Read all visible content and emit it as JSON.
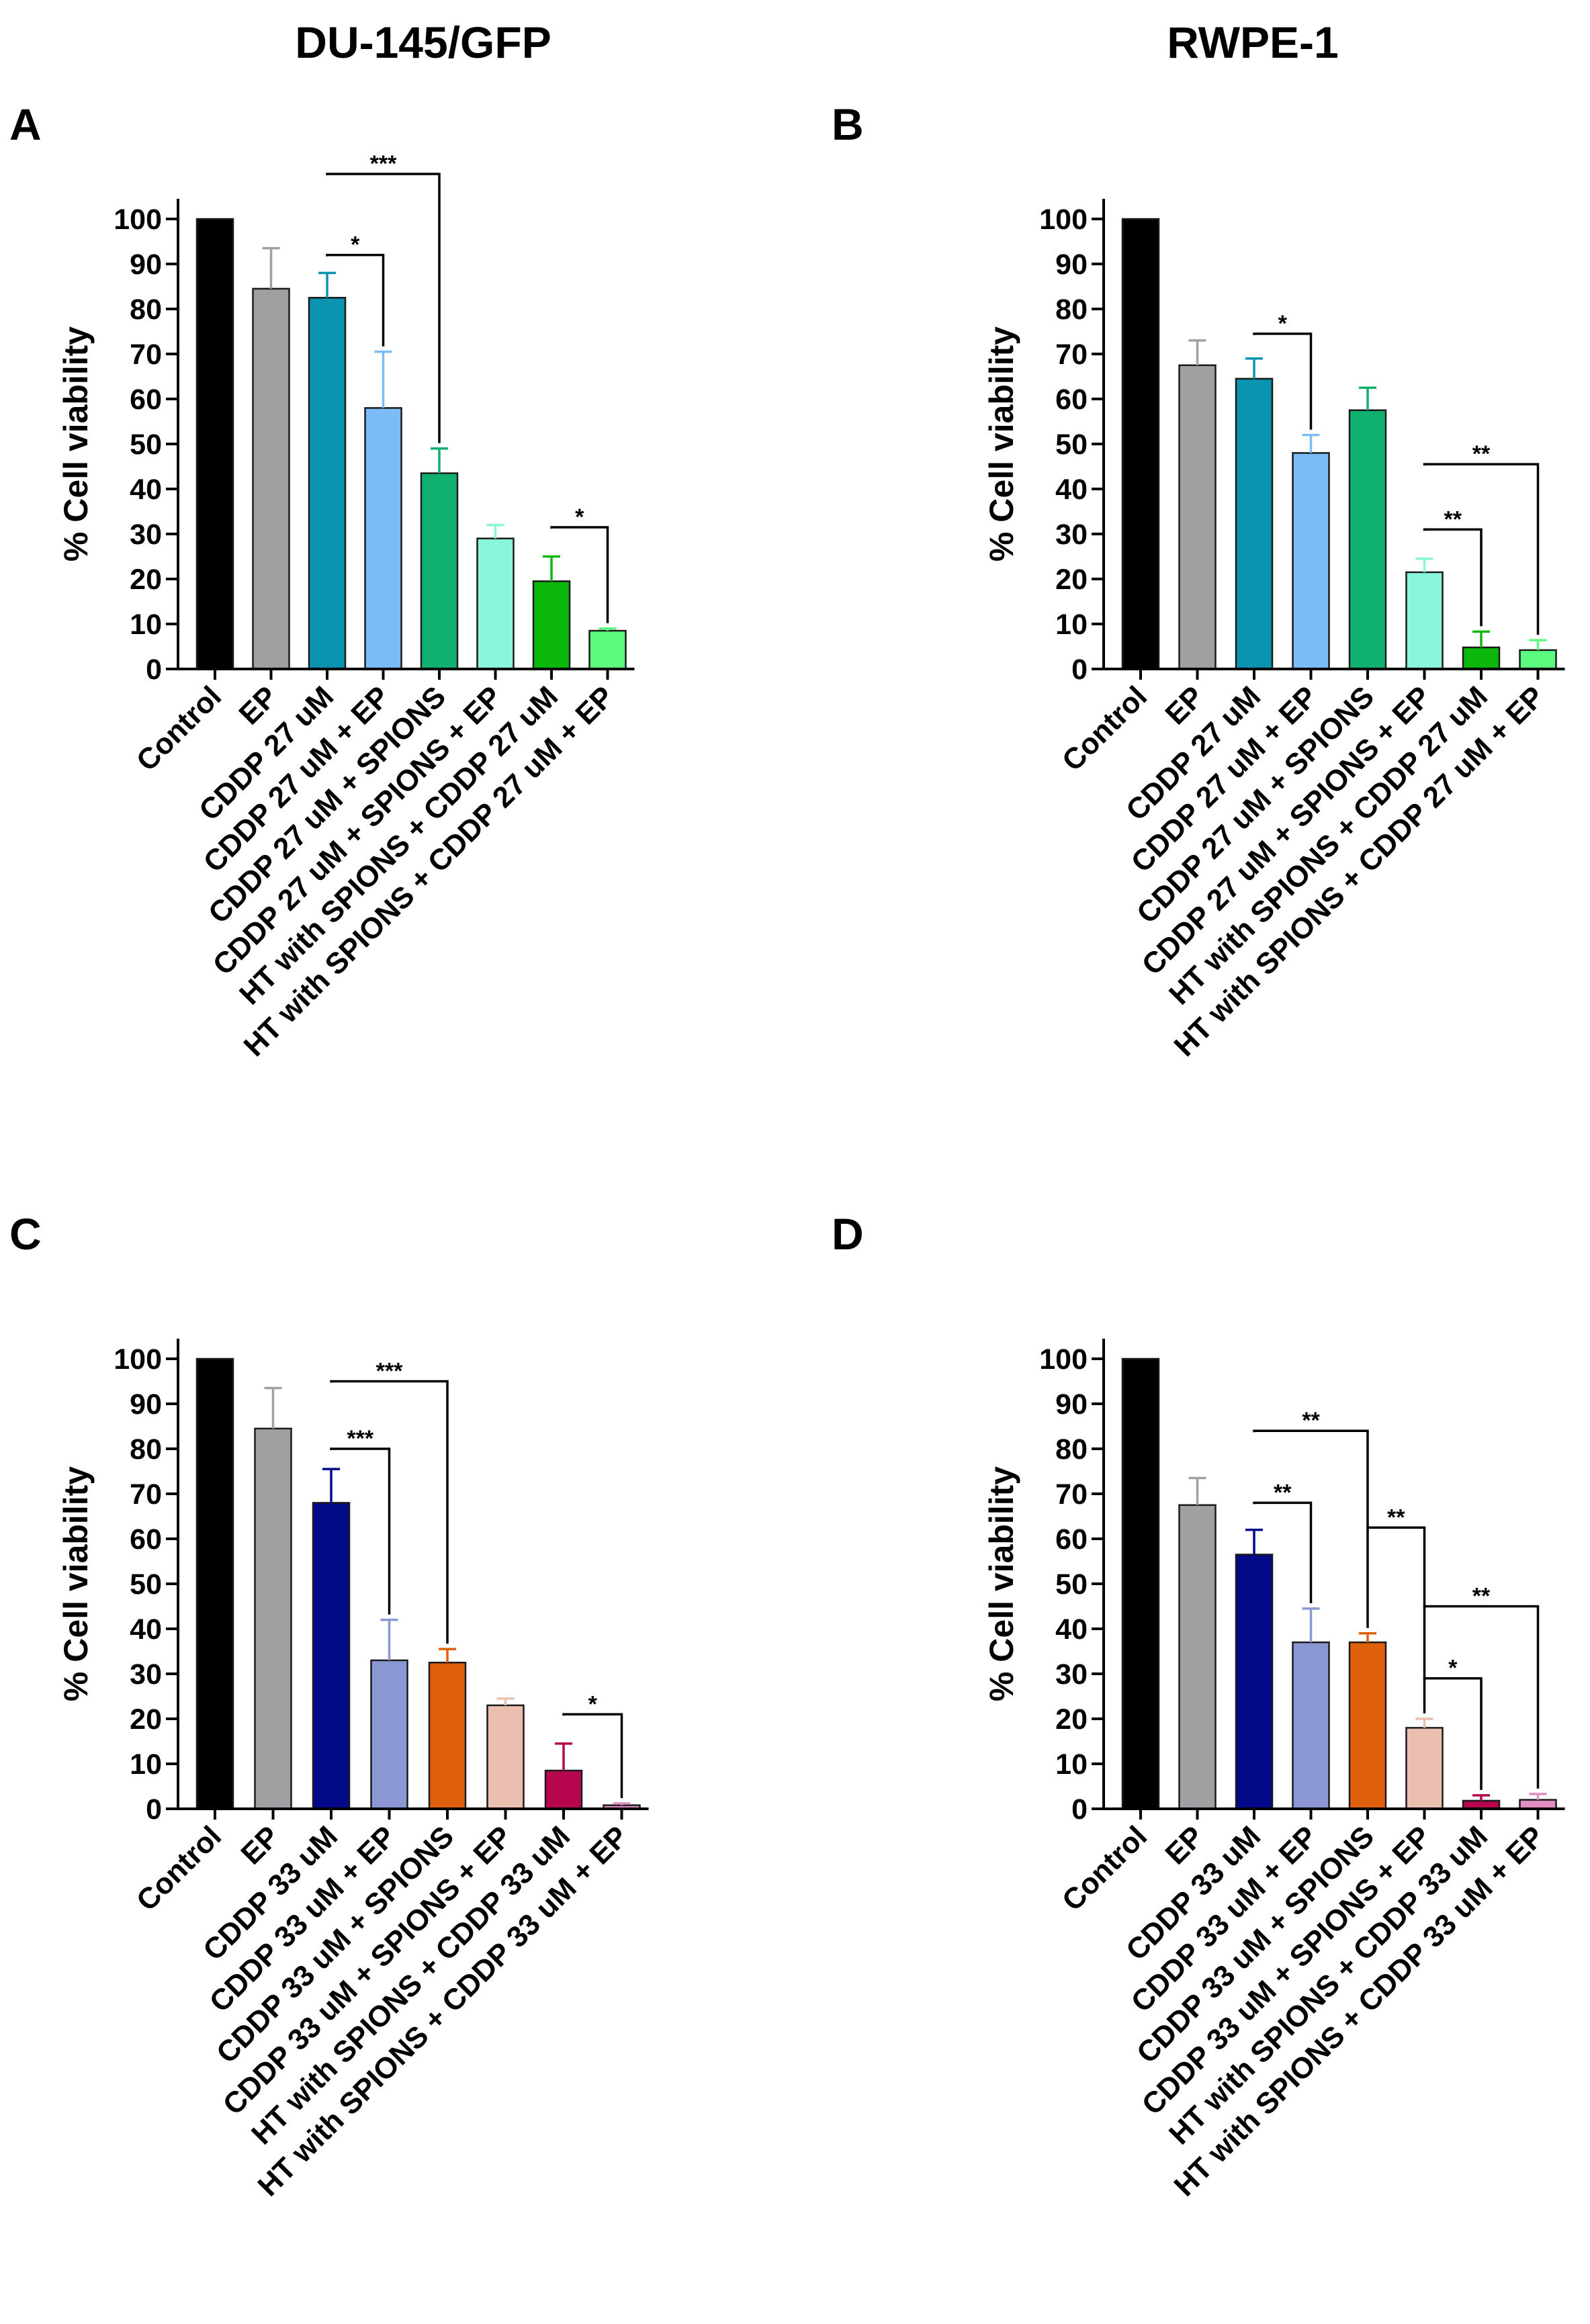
{
  "column_titles": [
    "DU-145/GFP",
    "RWPE-1"
  ],
  "chart_data": [
    {
      "type": "bar",
      "panel": "A",
      "ylabel": "% Cell viability",
      "ylim": [
        0,
        100
      ],
      "yticks": [
        0,
        10,
        20,
        30,
        40,
        50,
        60,
        70,
        80,
        90,
        100
      ],
      "categories": [
        "Control",
        "EP",
        "CDDP 27 uM",
        "CDDP 27 uM + EP",
        "CDDP 27 uM + SPIONS",
        "CDDP 27 uM + SPIONS + EP",
        "HT with SPIONS + CDDP 27 uM",
        "HT with SPIONS + CDDP 27 uM + EP"
      ],
      "values": [
        100,
        84.5,
        82.5,
        58,
        43.5,
        29,
        19.5,
        8.5
      ],
      "errors": [
        0,
        9,
        5.5,
        12.5,
        5.5,
        3,
        5.5,
        0.5
      ],
      "colors": [
        "#000000",
        "#a0a0a2",
        "#0b93b0",
        "#79bcf7",
        "#0fb070",
        "#8af6d9",
        "#0cb80c",
        "#5dfa80"
      ],
      "significance": [
        {
          "from": 2,
          "to": 4,
          "label": "***",
          "y": 110
        },
        {
          "from": 2,
          "to": 3,
          "label": "*",
          "y": 92
        },
        {
          "from": 6,
          "to": 7,
          "label": "*",
          "y": 31.5
        }
      ]
    },
    {
      "type": "bar",
      "panel": "B",
      "ylabel": "% Cell viability",
      "ylim": [
        0,
        100
      ],
      "yticks": [
        0,
        10,
        20,
        30,
        40,
        50,
        60,
        70,
        80,
        90,
        100
      ],
      "categories": [
        "Control",
        "EP",
        "CDDP 27 uM",
        "CDDP 27 uM + EP",
        "CDDP 27 uM + SPIONS",
        "CDDP 27 uM + SPIONS + EP",
        "HT with SPIONS + CDDP 27 uM",
        "HT with SPIONS + CDDP 27 uM + EP"
      ],
      "values": [
        100,
        67.5,
        64.5,
        48,
        57.5,
        21.5,
        4.8,
        4.2
      ],
      "errors": [
        0,
        5.5,
        4.5,
        4,
        5,
        3,
        3.5,
        2.2
      ],
      "colors": [
        "#000000",
        "#a0a0a2",
        "#0b93b0",
        "#79bcf7",
        "#0fb070",
        "#8af6d9",
        "#0cb80c",
        "#5dfa80"
      ],
      "significance": [
        {
          "from": 2,
          "to": 3,
          "label": "*",
          "y": 74.5
        },
        {
          "from": 5,
          "to": 7,
          "label": "**",
          "y": 45.5
        },
        {
          "from": 5,
          "to": 6,
          "label": "**",
          "y": 31
        }
      ]
    },
    {
      "type": "bar",
      "panel": "C",
      "ylabel": "% Cell viability",
      "ylim": [
        0,
        100
      ],
      "yticks": [
        0,
        10,
        20,
        30,
        40,
        50,
        60,
        70,
        80,
        90,
        100
      ],
      "categories": [
        "Control",
        "EP",
        "CDDP 33 uM",
        "CDDP 33 uM + EP",
        "CDDP 33 uM + SPIONS",
        "CDDP 33 uM + SPIONS + EP",
        "HT with SPIONS + CDDP 33 uM",
        "HT with SPIONS + CDDP 33 uM + EP"
      ],
      "values": [
        100,
        84.5,
        68,
        33,
        32.5,
        23,
        8.5,
        0.8
      ],
      "errors": [
        0,
        9,
        7.5,
        9,
        3,
        1.5,
        6,
        0.4
      ],
      "colors": [
        "#000000",
        "#a0a0a2",
        "#030a8a",
        "#8b97d2",
        "#e05f0a",
        "#ebbfb0",
        "#b5064e",
        "#e08fc0"
      ],
      "significance": [
        {
          "from": 2,
          "to": 4,
          "label": "***",
          "y": 95
        },
        {
          "from": 2,
          "to": 3,
          "label": "***",
          "y": 80
        },
        {
          "from": 6,
          "to": 7,
          "label": "*",
          "y": 21
        }
      ]
    },
    {
      "type": "bar",
      "panel": "D",
      "ylabel": "% Cell viability",
      "ylim": [
        0,
        100
      ],
      "yticks": [
        0,
        10,
        20,
        30,
        40,
        50,
        60,
        70,
        80,
        90,
        100
      ],
      "categories": [
        "Control",
        "EP",
        "CDDP 33 uM",
        "CDDP 33 uM + EP",
        "CDDP 33 uM + SPIONS",
        "CDDP 33 uM + SPIONS + EP",
        "HT with SPIONS + CDDP 33 uM",
        "HT with SPIONS + CDDP 33 uM + EP"
      ],
      "values": [
        100,
        67.5,
        56.5,
        37,
        37,
        18,
        1.8,
        2
      ],
      "errors": [
        0,
        6,
        5.5,
        7.5,
        2,
        2,
        1.2,
        1.3
      ],
      "colors": [
        "#000000",
        "#a0a0a2",
        "#030a8a",
        "#8b97d2",
        "#e05f0a",
        "#ebbfb0",
        "#b5064e",
        "#e08fc0"
      ],
      "significance": [
        {
          "from": 2,
          "to": 4,
          "label": "**",
          "y": 84
        },
        {
          "from": 2,
          "to": 3,
          "label": "**",
          "y": 68
        },
        {
          "from": 4,
          "to": 5,
          "label": "**",
          "y": 62.5
        },
        {
          "from": 5,
          "to": 7,
          "label": "**",
          "y": 45
        },
        {
          "from": 5,
          "to": 6,
          "label": "*",
          "y": 29
        }
      ]
    }
  ]
}
